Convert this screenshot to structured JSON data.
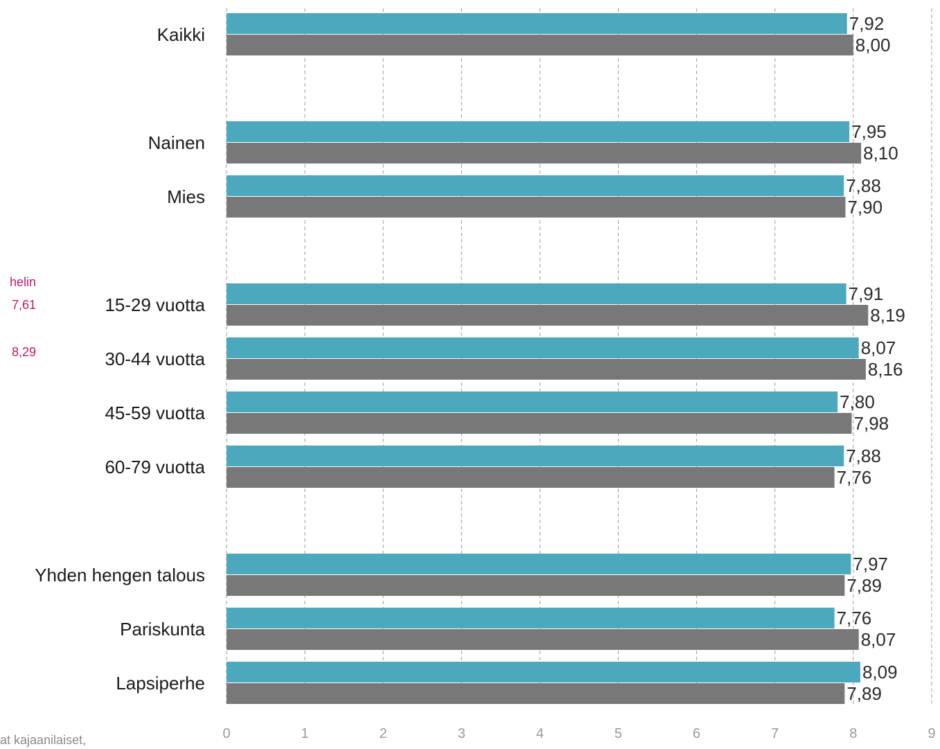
{
  "chart_data": {
    "type": "bar",
    "orientation": "horizontal",
    "xlim": [
      0,
      9
    ],
    "x_ticks": [
      "0",
      "1",
      "2",
      "3",
      "4",
      "5",
      "6",
      "7",
      "8",
      "9"
    ],
    "grid": true,
    "categories": [
      "Kaikki",
      "Nainen",
      "Mies",
      "15-29 vuotta",
      "30-44 vuotta",
      "45-59 vuotta",
      "60-79 vuotta",
      "Yhden hengen talous",
      "Pariskunta",
      "Lapsiperhe"
    ],
    "series": [
      {
        "color": "#4ca8bd",
        "values": [
          7.92,
          7.95,
          7.88,
          7.91,
          8.07,
          7.8,
          7.88,
          7.97,
          7.76,
          8.09
        ],
        "labels": [
          "7,92",
          "7,95",
          "7,88",
          "7,91",
          "8,07",
          "7,80",
          "7,88",
          "7,97",
          "7,76",
          "8,09"
        ]
      },
      {
        "color": "#787878",
        "values": [
          8.0,
          8.1,
          7.9,
          8.19,
          8.16,
          7.98,
          7.76,
          7.89,
          8.07,
          7.89
        ],
        "labels": [
          "8,00",
          "8,10",
          "7,90",
          "8,19",
          "8,16",
          "7,98",
          "7,76",
          "7,89",
          "8,07",
          "7,89"
        ]
      }
    ]
  },
  "side_notes": [
    "helin",
    "7,61",
    "8,29"
  ],
  "footnote": "at kajaanilaiset,"
}
